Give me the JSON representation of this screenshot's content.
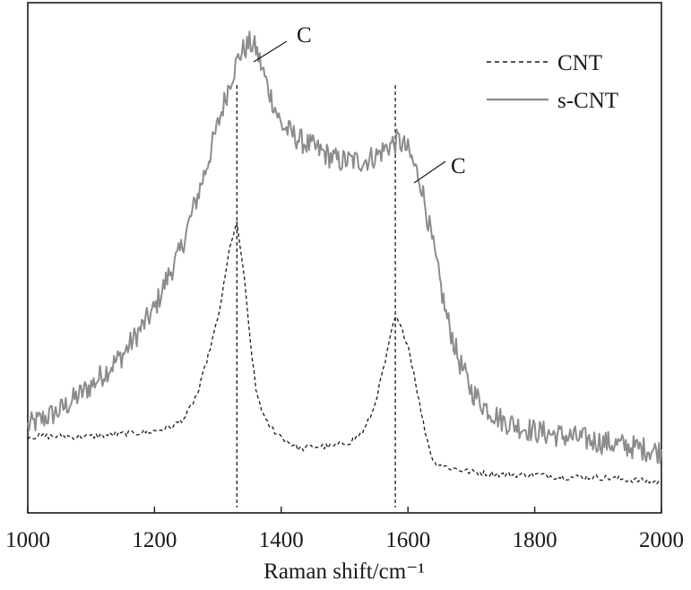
{
  "chart_data": {
    "type": "line",
    "title": "",
    "xlabel": "Raman shift/cm⁻¹",
    "ylabel": "",
    "xlim": [
      1000,
      2000
    ],
    "ylim": [
      0,
      100
    ],
    "xticks": [
      1000,
      1200,
      1400,
      1600,
      1800,
      2000
    ],
    "xtick_labels": [
      "1000",
      "1200",
      "1400",
      "1600",
      "1800",
      "2000"
    ],
    "grid": false,
    "legend": {
      "position": "top-right"
    },
    "series": [
      {
        "name": "CNT",
        "style": "dashed",
        "color": "#1a1a1a",
        "x": [
          1000,
          1050,
          1100,
          1150,
          1200,
          1230,
          1250,
          1270,
          1285,
          1300,
          1310,
          1320,
          1330,
          1340,
          1350,
          1360,
          1375,
          1390,
          1410,
          1430,
          1450,
          1480,
          1510,
          1530,
          1545,
          1555,
          1565,
          1575,
          1580,
          1590,
          1600,
          1610,
          1625,
          1640,
          1660,
          1700,
          1750,
          1800,
          1850,
          1900,
          1950,
          2000
        ],
        "y": [
          15,
          15,
          15,
          15.5,
          16,
          17,
          19,
          24,
          31,
          38,
          45,
          53,
          56.5,
          48,
          35,
          24,
          18,
          16,
          14,
          12.5,
          13,
          13,
          14,
          16,
          20,
          25,
          30,
          36,
          38.5,
          36,
          33,
          27,
          17,
          10,
          9,
          8,
          7.5,
          7.5,
          7,
          7,
          6.5,
          6
        ]
      },
      {
        "name": "s-CNT",
        "style": "solid",
        "color": "#8c8c8c",
        "x": [
          1000,
          1050,
          1100,
          1150,
          1200,
          1220,
          1240,
          1260,
          1280,
          1300,
          1320,
          1335,
          1350,
          1360,
          1380,
          1400,
          1430,
          1460,
          1490,
          1510,
          1530,
          1550,
          1570,
          1585,
          1600,
          1620,
          1640,
          1660,
          1680,
          1700,
          1720,
          1750,
          1800,
          1850,
          1900,
          1950,
          2000
        ],
        "y": [
          17,
          20,
          25,
          31,
          40,
          46,
          51,
          59,
          67,
          76,
          85,
          90,
          92,
          91,
          83,
          76,
          73,
          71,
          69,
          69,
          69,
          70,
          72,
          73,
          71,
          65,
          52,
          39,
          30,
          24,
          21,
          18,
          16,
          15,
          14,
          13,
          12
        ]
      }
    ],
    "reference_lines": [
      {
        "x": 1330,
        "style": "dashed"
      },
      {
        "x": 1580,
        "style": "dashed"
      }
    ],
    "annotations": [
      {
        "text": "C",
        "x": 1355,
        "y": 92
      },
      {
        "text": "C",
        "x": 1600,
        "y": 73
      }
    ]
  }
}
